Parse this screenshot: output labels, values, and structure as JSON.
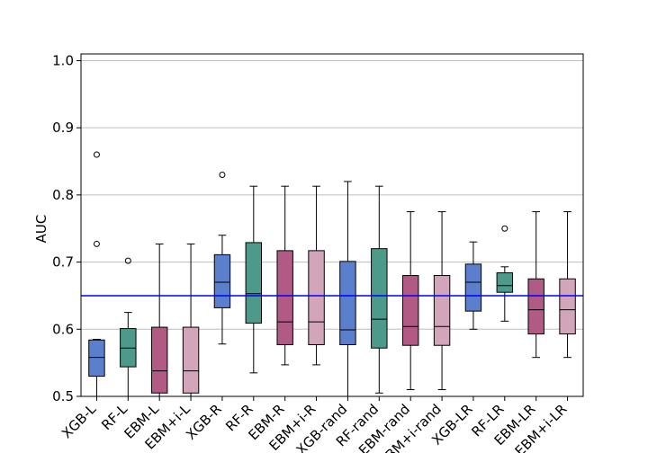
{
  "chart_data": {
    "type": "boxplot",
    "ylabel": "AUC",
    "xlabel": "",
    "title": "",
    "ylim": [
      0.5,
      1.01
    ],
    "yticks": [
      0.5,
      0.6,
      0.7,
      0.8,
      0.9,
      1.0
    ],
    "ytick_labels": [
      "0.5",
      "0.6",
      "0.7",
      "0.8",
      "0.9",
      "1.0"
    ],
    "grid": "horizontal",
    "reference_line": {
      "y": 0.65,
      "color": "#0000ff"
    },
    "colors": {
      "XGB": "#5b7fcc",
      "RF": "#4d9a8a",
      "EBM": "#b05a84",
      "EBM+i": "#d3a5bb"
    },
    "categories": [
      "XGB-L",
      "RF-L",
      "EBM-L",
      "EBM+i-L",
      "XGB-R",
      "RF-R",
      "EBM-R",
      "EBM+i-R",
      "XGB-rand",
      "RF-rand",
      "EBM-rand",
      "EBM+i-rand",
      "XGB-LR",
      "RF-LR",
      "EBM-LR",
      "EBM+i-LR"
    ],
    "boxes": [
      {
        "label": "XGB-L",
        "model": "XGB",
        "whislo": 0.5,
        "q1": 0.53,
        "med": 0.558,
        "q3": 0.584,
        "whishi": 0.585,
        "fliers": [
          0.727,
          0.86
        ]
      },
      {
        "label": "RF-L",
        "model": "RF",
        "whislo": 0.5,
        "q1": 0.544,
        "med": 0.572,
        "q3": 0.601,
        "whishi": 0.625,
        "fliers": [
          0.702
        ]
      },
      {
        "label": "EBM-L",
        "model": "EBM",
        "whislo": 0.5,
        "q1": 0.505,
        "med": 0.538,
        "q3": 0.603,
        "whishi": 0.727,
        "fliers": []
      },
      {
        "label": "EBM+i-L",
        "model": "EBM+i",
        "whislo": 0.5,
        "q1": 0.505,
        "med": 0.538,
        "q3": 0.603,
        "whishi": 0.727,
        "fliers": []
      },
      {
        "label": "XGB-R",
        "model": "XGB",
        "whislo": 0.578,
        "q1": 0.632,
        "med": 0.67,
        "q3": 0.711,
        "whishi": 0.74,
        "fliers": [
          0.83
        ]
      },
      {
        "label": "RF-R",
        "model": "RF",
        "whislo": 0.535,
        "q1": 0.609,
        "med": 0.653,
        "q3": 0.729,
        "whishi": 0.813,
        "fliers": []
      },
      {
        "label": "EBM-R",
        "model": "EBM",
        "whislo": 0.547,
        "q1": 0.577,
        "med": 0.611,
        "q3": 0.717,
        "whishi": 0.813,
        "fliers": []
      },
      {
        "label": "EBM+i-R",
        "model": "EBM+i",
        "whislo": 0.547,
        "q1": 0.577,
        "med": 0.611,
        "q3": 0.717,
        "whishi": 0.813,
        "fliers": []
      },
      {
        "label": "XGB-rand",
        "model": "XGB",
        "whislo": 0.5,
        "q1": 0.577,
        "med": 0.599,
        "q3": 0.701,
        "whishi": 0.82,
        "fliers": []
      },
      {
        "label": "RF-rand",
        "model": "RF",
        "whislo": 0.505,
        "q1": 0.572,
        "med": 0.615,
        "q3": 0.72,
        "whishi": 0.813,
        "fliers": []
      },
      {
        "label": "EBM-rand",
        "model": "EBM",
        "whislo": 0.51,
        "q1": 0.576,
        "med": 0.604,
        "q3": 0.68,
        "whishi": 0.775,
        "fliers": []
      },
      {
        "label": "EBM+i-rand",
        "model": "EBM+i",
        "whislo": 0.51,
        "q1": 0.576,
        "med": 0.604,
        "q3": 0.68,
        "whishi": 0.775,
        "fliers": []
      },
      {
        "label": "XGB-LR",
        "model": "XGB",
        "whislo": 0.6,
        "q1": 0.627,
        "med": 0.67,
        "q3": 0.697,
        "whishi": 0.73,
        "fliers": []
      },
      {
        "label": "RF-LR",
        "model": "RF",
        "whislo": 0.612,
        "q1": 0.655,
        "med": 0.665,
        "q3": 0.684,
        "whishi": 0.693,
        "fliers": [
          0.75
        ]
      },
      {
        "label": "EBM-LR",
        "model": "EBM",
        "whislo": 0.558,
        "q1": 0.593,
        "med": 0.629,
        "q3": 0.675,
        "whishi": 0.775,
        "fliers": []
      },
      {
        "label": "EBM+i-LR",
        "model": "EBM+i",
        "whislo": 0.558,
        "q1": 0.593,
        "med": 0.629,
        "q3": 0.675,
        "whishi": 0.775,
        "fliers": []
      }
    ]
  }
}
